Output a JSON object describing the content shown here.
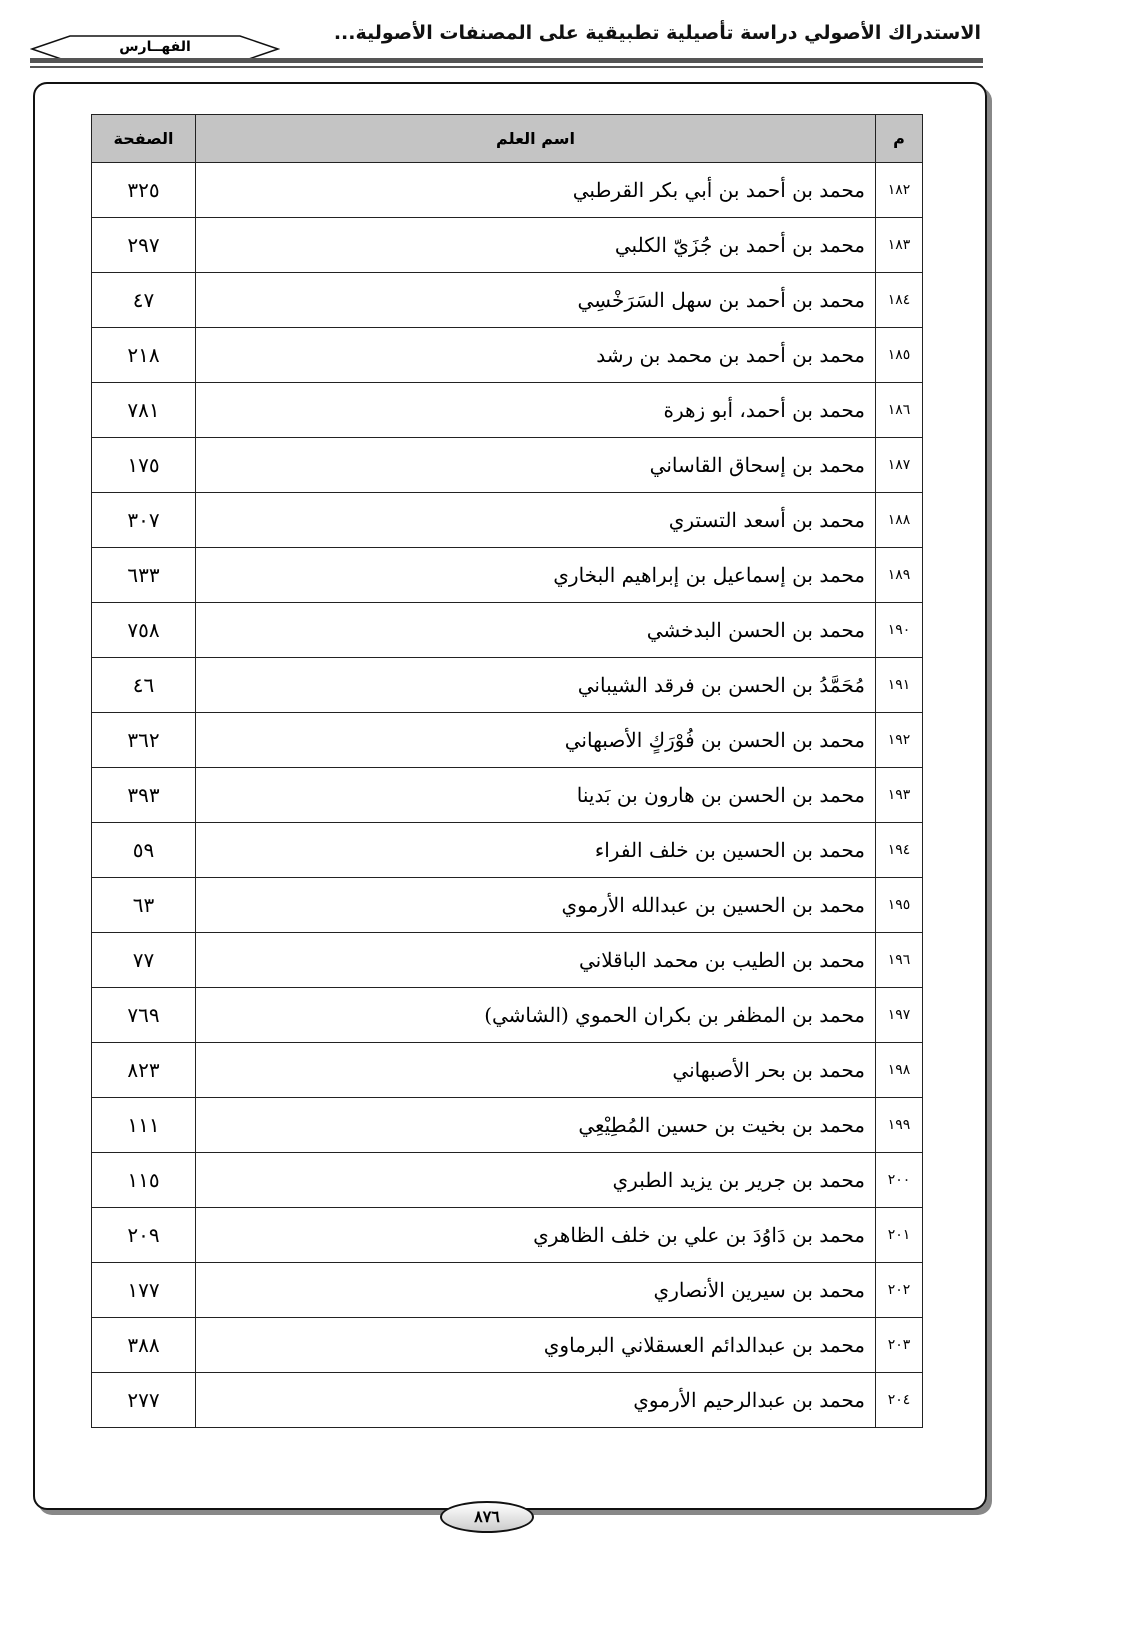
{
  "header": {
    "running_title": "الاستدراك الأصولي دراسة تأصيلية تطبيقية على المصنفات الأصولية...",
    "section": "الفهــارس"
  },
  "table": {
    "headers": {
      "index": "م",
      "name": "اسم العلم",
      "page": "الصفحة"
    },
    "rows": [
      {
        "index": "١٨٢",
        "name": "محمد بن أحمد بن أبي بكر القرطبي",
        "page": "٣٢٥"
      },
      {
        "index": "١٨٣",
        "name": "محمد بن أحمد بن جُزَيّ الكلبي",
        "page": "٢٩٧"
      },
      {
        "index": "١٨٤",
        "name": "محمد بن أحمد بن سهل السَرَخْسِي",
        "page": "٤٧"
      },
      {
        "index": "١٨٥",
        "name": "محمد بن أحمد بن محمد بن رشد",
        "page": "٢١٨"
      },
      {
        "index": "١٨٦",
        "name": "محمد بن أحمد، أبو زهرة",
        "page": "٧٨١"
      },
      {
        "index": "١٨٧",
        "name": "محمد بن إسحاق القاساني",
        "page": "١٧٥"
      },
      {
        "index": "١٨٨",
        "name": "محمد بن أسعد التستري",
        "page": "٣٠٧"
      },
      {
        "index": "١٨٩",
        "name": "محمد بن إسماعيل بن إبراهيم البخاري",
        "page": "٦٣٣"
      },
      {
        "index": "١٩٠",
        "name": "محمد بن الحسن البدخشي",
        "page": "٧٥٨"
      },
      {
        "index": "١٩١",
        "name": "مُحَمَّدُ بن الحسن بن فرقد الشيباني",
        "page": "٤٦"
      },
      {
        "index": "١٩٢",
        "name": "محمد بن الحسن بن فُوْرَكٍ الأصبهاني",
        "page": "٣٦٢"
      },
      {
        "index": "١٩٣",
        "name": "محمد بن الحسن بن هارون بن بَدينا",
        "page": "٣٩٣"
      },
      {
        "index": "١٩٤",
        "name": "محمد بن الحسين بن خلف الفراء",
        "page": "٥٩"
      },
      {
        "index": "١٩٥",
        "name": "محمد بن الحسين بن عبدالله الأرموي",
        "page": "٦٣"
      },
      {
        "index": "١٩٦",
        "name": "محمد بن الطيب بن محمد الباقلاني",
        "page": "٧٧"
      },
      {
        "index": "١٩٧",
        "name": "محمد بن المظفر بن بكران الحموي (الشاشي)",
        "page": "٧٦٩"
      },
      {
        "index": "١٩٨",
        "name": "محمد بن بحر الأصبهاني",
        "page": "٨٢٣"
      },
      {
        "index": "١٩٩",
        "name": "محمد بن بخيت بن حسين المُطِيْعِي",
        "page": "١١١"
      },
      {
        "index": "٢٠٠",
        "name": "محمد بن جرير بن يزيد الطبري",
        "page": "١١٥"
      },
      {
        "index": "٢٠١",
        "name": "محمد بن دَاوُدَ بن علي بن خلف الظاهري",
        "page": "٢٠٩"
      },
      {
        "index": "٢٠٢",
        "name": "محمد بن سيرين الأنصاري",
        "page": "١٧٧"
      },
      {
        "index": "٢٠٣",
        "name": "محمد بن عبدالدائم العسقلاني البرماوي",
        "page": "٣٨٨"
      },
      {
        "index": "٢٠٤",
        "name": "محمد بن عبدالرحيم الأرموي",
        "page": "٢٧٧"
      }
    ]
  },
  "footer": {
    "page_number": "٨٧٦"
  }
}
